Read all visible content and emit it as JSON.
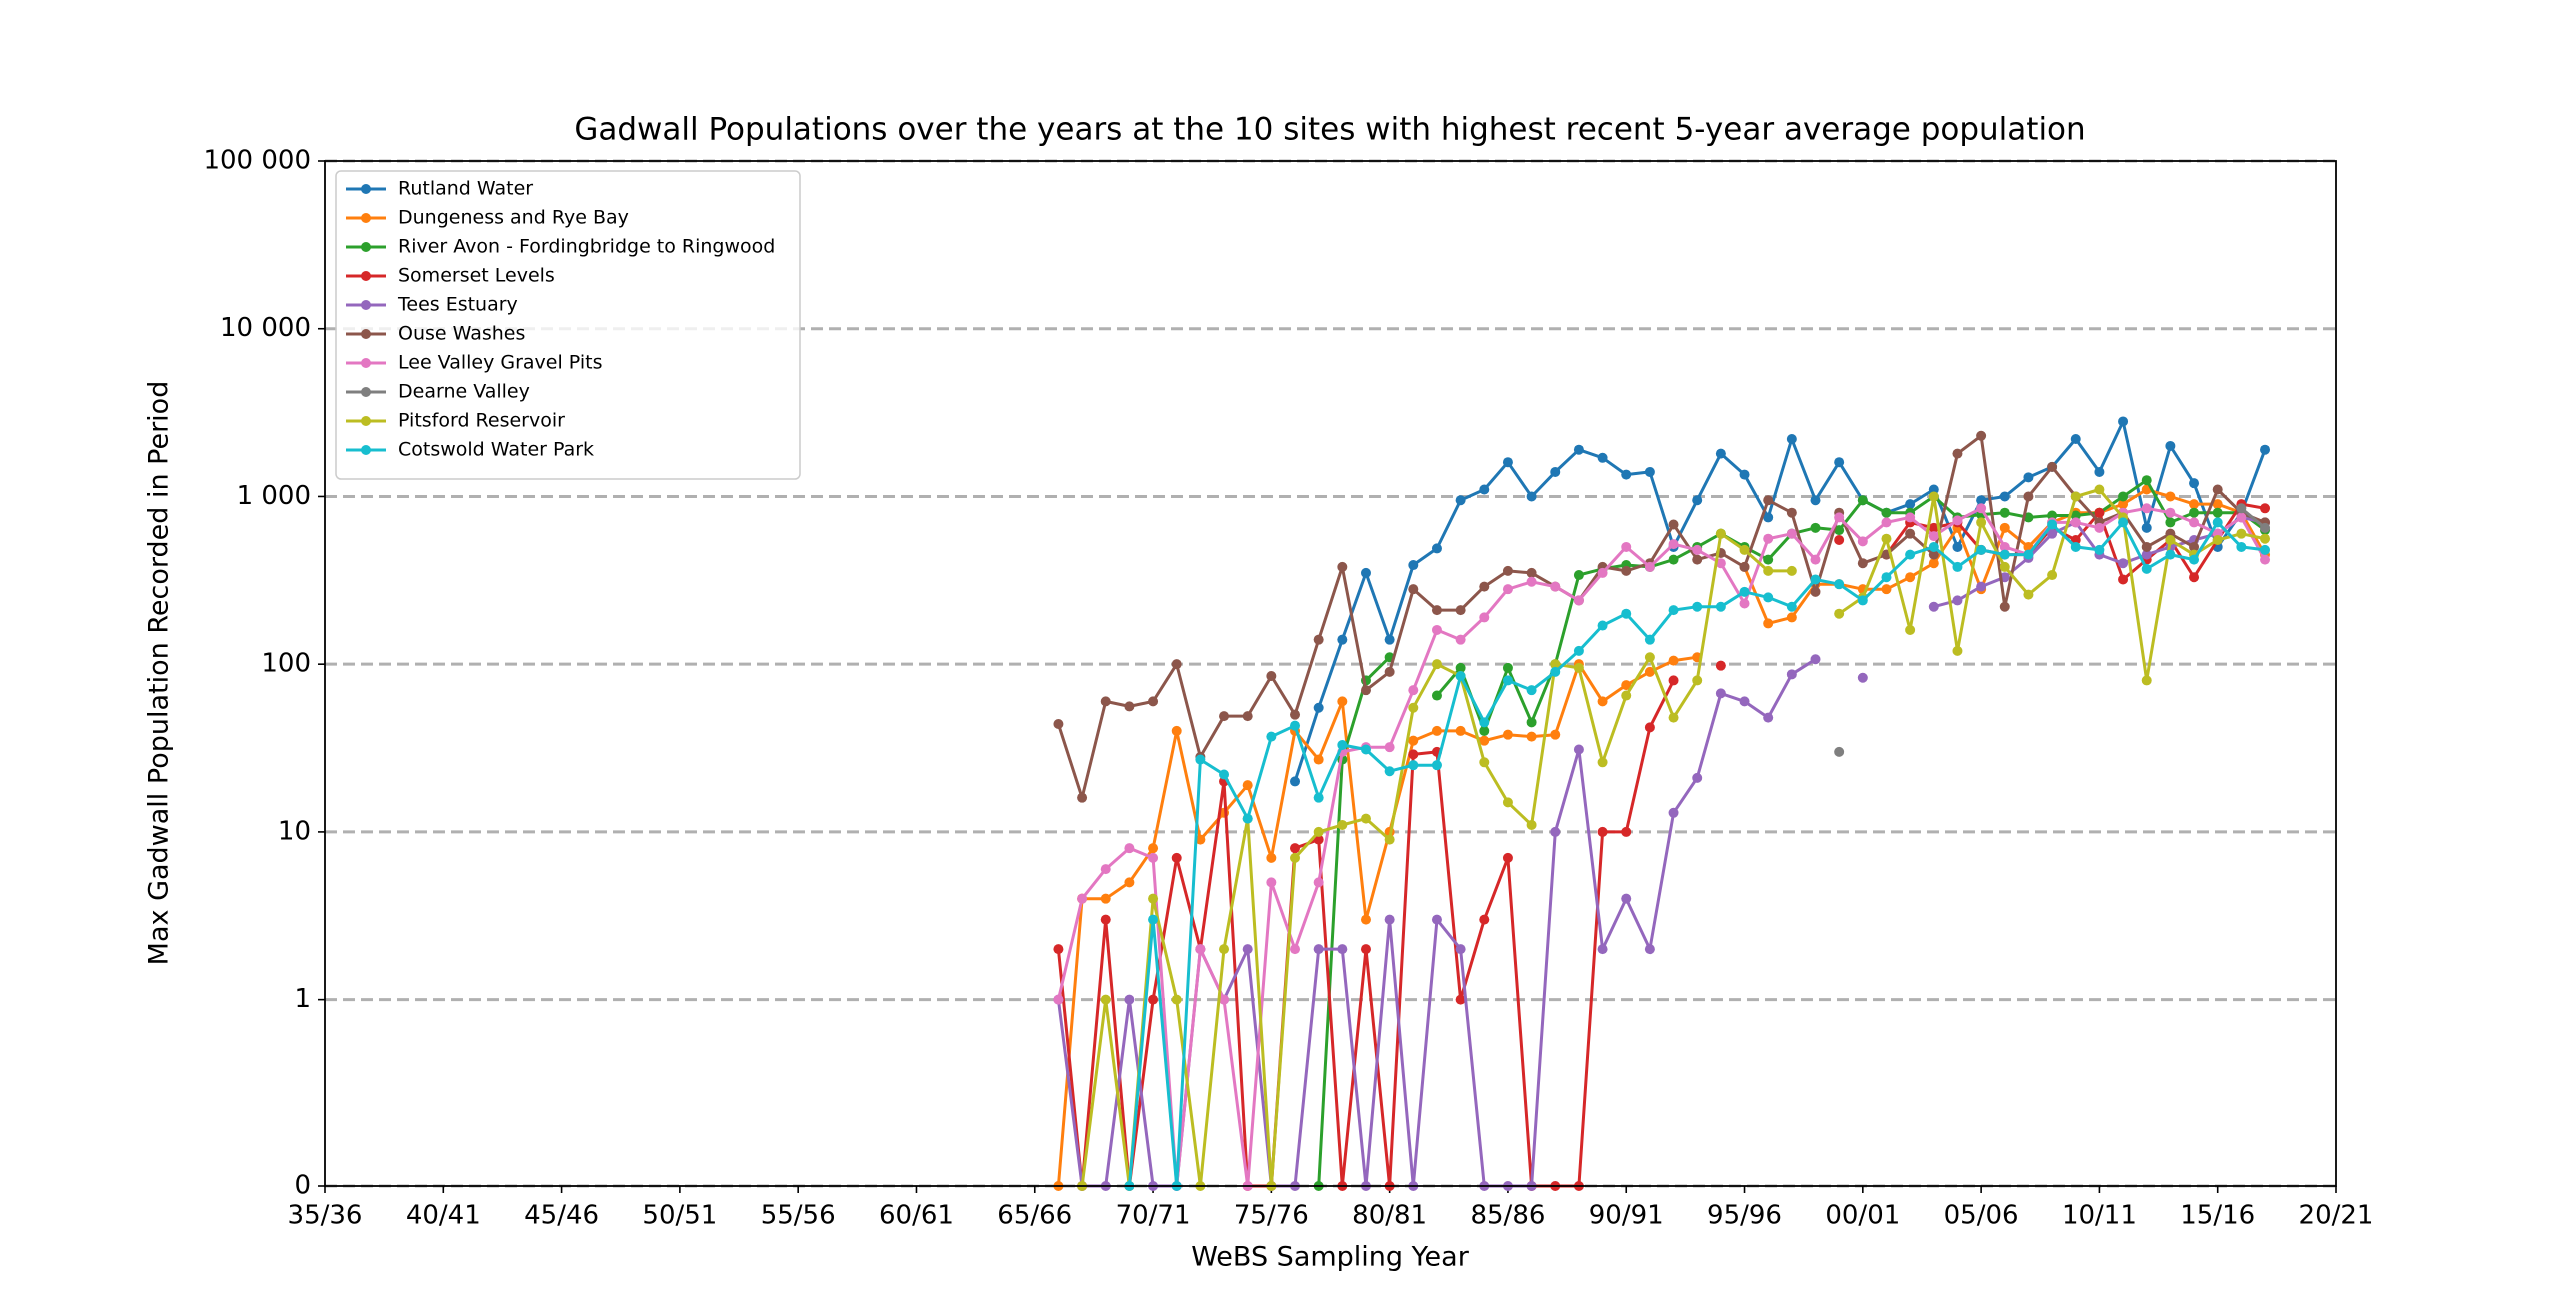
{
  "chart_data": {
    "type": "line",
    "title": "Gadwall Populations over the years at the 10 sites with highest recent 5-year average population",
    "x_label": "WeBS Sampling Year",
    "y_label": "Max Gadwall Population Recorded in Period",
    "yscale": "symlog",
    "grid": true,
    "legend_loc": "upper left",
    "xlim": [
      1935,
      2020
    ],
    "xticks": [
      {
        "value": 1935,
        "label": "35/36"
      },
      {
        "value": 1940,
        "label": "40/41"
      },
      {
        "value": 1945,
        "label": "45/46"
      },
      {
        "value": 1950,
        "label": "50/51"
      },
      {
        "value": 1955,
        "label": "55/56"
      },
      {
        "value": 1960,
        "label": "60/61"
      },
      {
        "value": 1965,
        "label": "65/66"
      },
      {
        "value": 1970,
        "label": "70/71"
      },
      {
        "value": 1975,
        "label": "75/76"
      },
      {
        "value": 1980,
        "label": "80/81"
      },
      {
        "value": 1985,
        "label": "85/86"
      },
      {
        "value": 1990,
        "label": "90/91"
      },
      {
        "value": 1995,
        "label": "95/96"
      },
      {
        "value": 2000,
        "label": "00/01"
      },
      {
        "value": 2005,
        "label": "05/06"
      },
      {
        "value": 2010,
        "label": "10/11"
      },
      {
        "value": 2015,
        "label": "15/16"
      },
      {
        "value": 2020,
        "label": "20/21"
      }
    ],
    "ylim": [
      0,
      100000
    ],
    "yticks": [
      0,
      1,
      10,
      100,
      {
        "value": 1000,
        "label": "1 000"
      },
      {
        "value": 10000,
        "label": "10 000"
      },
      {
        "value": 100000,
        "label": "100 000"
      }
    ],
    "x": [
      1966,
      1967,
      1968,
      1969,
      1970,
      1971,
      1972,
      1973,
      1974,
      1975,
      1976,
      1977,
      1978,
      1979,
      1980,
      1981,
      1982,
      1983,
      1984,
      1985,
      1986,
      1987,
      1988,
      1989,
      1990,
      1991,
      1992,
      1993,
      1994,
      1995,
      1996,
      1997,
      1998,
      1999,
      2000,
      2001,
      2002,
      2003,
      2004,
      2005,
      2006,
      2007,
      2008,
      2009,
      2010,
      2011,
      2012,
      2013,
      2014,
      2015,
      2016,
      2017
    ],
    "series": [
      {
        "name": "Rutland Water",
        "color": "#1f77b4",
        "values": [
          null,
          null,
          null,
          null,
          null,
          null,
          null,
          null,
          null,
          null,
          20,
          55,
          140,
          350,
          140,
          390,
          490,
          950,
          1100,
          1600,
          1000,
          1400,
          1900,
          1700,
          1350,
          1400,
          500,
          950,
          1800,
          1350,
          750,
          2200,
          950,
          1600,
          950,
          800,
          900,
          1100,
          500,
          950,
          1000,
          1300,
          1500,
          2200,
          1400,
          2800,
          650,
          2000,
          1200,
          500,
          800,
          1900
        ]
      },
      {
        "name": "Dungeness and Rye Bay",
        "color": "#ff7f0e",
        "values": [
          0,
          4,
          4,
          5,
          8,
          40,
          9,
          13,
          19,
          7,
          40,
          27,
          60,
          3,
          10,
          35,
          40,
          40,
          35,
          38,
          37,
          38,
          100,
          60,
          75,
          90,
          105,
          110,
          null,
          380,
          175,
          190,
          300,
          300,
          280,
          280,
          330,
          400,
          650,
          280,
          650,
          500,
          700,
          800,
          800,
          900,
          1100,
          1000,
          900,
          900,
          800,
          450
        ]
      },
      {
        "name": "River Avon - Fordingbridge to Ringwood",
        "color": "#2ca02c",
        "values": [
          null,
          null,
          null,
          null,
          null,
          null,
          null,
          null,
          null,
          null,
          null,
          0,
          27,
          80,
          110,
          null,
          65,
          95,
          40,
          95,
          45,
          100,
          340,
          370,
          390,
          380,
          420,
          500,
          600,
          500,
          420,
          600,
          650,
          630,
          950,
          800,
          800,
          1000,
          750,
          780,
          800,
          750,
          770,
          770,
          800,
          1000,
          1250,
          700,
          800,
          800,
          800,
          630
        ]
      },
      {
        "name": "Somerset Levels",
        "color": "#d62728",
        "values": [
          2,
          0,
          3,
          0,
          1,
          7,
          2,
          20,
          0,
          0,
          8,
          9,
          0,
          2,
          0,
          29,
          30,
          1,
          3,
          7,
          0,
          0,
          0,
          10,
          10,
          42,
          80,
          null,
          98,
          null,
          null,
          null,
          null,
          550,
          null,
          450,
          700,
          650,
          700,
          480,
          450,
          450,
          650,
          550,
          800,
          320,
          420,
          550,
          330,
          550,
          900,
          850
        ]
      },
      {
        "name": "Tees Estuary",
        "color": "#9467bd",
        "values": [
          1,
          0,
          0,
          1,
          0,
          0,
          2,
          1,
          2,
          0,
          0,
          2,
          2,
          0,
          3,
          0,
          3,
          2,
          0,
          0,
          0,
          10,
          31,
          2,
          4,
          2,
          13,
          21,
          67,
          60,
          48,
          87,
          107,
          null,
          83,
          null,
          null,
          220,
          240,
          290,
          330,
          430,
          600,
          700,
          450,
          400,
          450,
          500,
          550,
          600,
          750,
          700
        ]
      },
      {
        "name": "Ouse Washes",
        "color": "#8c564b",
        "values": [
          44,
          16,
          60,
          56,
          60,
          100,
          28,
          49,
          49,
          85,
          50,
          140,
          380,
          70,
          90,
          280,
          210,
          210,
          290,
          360,
          350,
          290,
          240,
          380,
          360,
          400,
          680,
          420,
          460,
          380,
          950,
          800,
          270,
          800,
          400,
          450,
          600,
          450,
          1800,
          2300,
          220,
          1000,
          1500,
          1000,
          700,
          800,
          500,
          600,
          500,
          1100,
          800,
          700
        ]
      },
      {
        "name": "Lee Valley Gravel Pits",
        "color": "#e377c2",
        "values": [
          1,
          4,
          6,
          8,
          7,
          0,
          2,
          1,
          0,
          5,
          2,
          5,
          30,
          32,
          32,
          70,
          160,
          140,
          190,
          280,
          310,
          290,
          240,
          350,
          500,
          380,
          520,
          480,
          400,
          230,
          560,
          600,
          420,
          750,
          540,
          700,
          750,
          580,
          720,
          850,
          500,
          450,
          700,
          700,
          650,
          800,
          850,
          800,
          700,
          600,
          750,
          420
        ]
      },
      {
        "name": "Dearne Valley",
        "color": "#7f7f7f",
        "values": [
          null,
          null,
          null,
          null,
          null,
          null,
          null,
          null,
          null,
          null,
          null,
          null,
          null,
          null,
          null,
          null,
          null,
          null,
          null,
          null,
          null,
          null,
          null,
          null,
          null,
          null,
          null,
          null,
          null,
          null,
          null,
          null,
          null,
          30,
          null,
          null,
          null,
          null,
          null,
          null,
          null,
          null,
          null,
          null,
          null,
          null,
          null,
          null,
          null,
          null,
          850,
          650
        ]
      },
      {
        "name": "Pitsford Reservoir",
        "color": "#bcbd22",
        "values": [
          null,
          0,
          1,
          0,
          4,
          1,
          0,
          2,
          12,
          0,
          7,
          10,
          11,
          12,
          9,
          55,
          100,
          85,
          26,
          15,
          11,
          100,
          95,
          26,
          65,
          110,
          48,
          80,
          600,
          480,
          360,
          360,
          null,
          200,
          250,
          560,
          160,
          1000,
          120,
          700,
          380,
          260,
          340,
          1000,
          1100,
          750,
          80,
          550,
          450,
          550,
          600,
          560
        ]
      },
      {
        "name": "Cotswold Water Park",
        "color": "#17becf",
        "values": [
          null,
          null,
          null,
          0,
          3,
          0,
          27,
          22,
          12,
          37,
          43,
          16,
          33,
          31,
          23,
          25,
          25,
          85,
          45,
          80,
          70,
          90,
          120,
          170,
          200,
          140,
          210,
          220,
          220,
          270,
          250,
          220,
          320,
          300,
          240,
          330,
          450,
          500,
          380,
          480,
          450,
          450,
          680,
          500,
          480,
          700,
          370,
          450,
          420,
          700,
          500,
          480
        ]
      }
    ]
  }
}
